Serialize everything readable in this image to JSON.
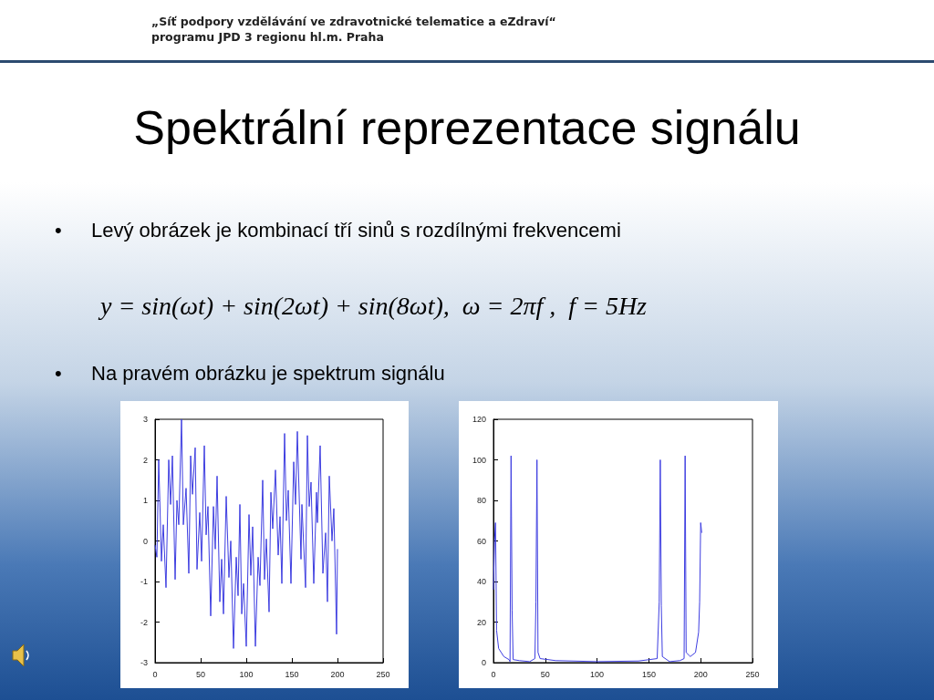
{
  "chart_data": [
    {
      "type": "line",
      "title": "Spektrální reprezentace signálu",
      "annotations": [
        "„Síť podpory vzdělávání ve zdravotnické telematice a eZdraví“ programu JPD 3 regionu hl.m. Praha",
        "• Levý obrázek je kombinací tří sinů s rozdílnými frekvencemi",
        "y = sin(ωt) + sin(2ωt) + sin(8ωt),  ω = 2πf ,  f = 5Hz",
        "• Na pravém obrázku je spektrum signálu"
      ],
      "x": [
        0,
        2,
        4,
        7,
        9,
        12,
        15,
        17,
        19,
        22,
        24,
        26,
        29,
        31,
        34,
        37,
        39,
        41,
        44,
        46,
        49,
        51,
        54,
        56,
        58,
        61,
        64,
        66,
        68,
        71,
        73,
        75,
        78,
        81,
        83,
        86,
        89,
        91,
        93,
        95,
        97,
        100,
        103,
        105,
        107,
        110,
        113,
        115,
        118,
        120,
        122,
        125,
        127,
        129,
        132,
        135,
        137,
        139,
        142,
        144,
        146,
        149,
        152,
        154,
        156,
        160,
        161,
        165,
        167,
        169,
        171,
        174,
        177,
        178,
        181,
        184,
        187,
        189,
        191,
        194,
        196,
        199,
        200
      ],
      "values": [
        -0.1,
        -0.4,
        2.0,
        -0.5,
        0.4,
        -1.15,
        2.0,
        0.9,
        2.1,
        -0.95,
        1.0,
        0.4,
        3.0,
        0.4,
        1.3,
        -0.8,
        2.1,
        1.15,
        2.3,
        -0.7,
        0.7,
        -0.5,
        2.35,
        0.15,
        0.85,
        -1.85,
        0.85,
        -0.2,
        1.6,
        -1.5,
        -0.45,
        -1.8,
        1.1,
        -0.9,
        0.0,
        -2.65,
        -0.4,
        -1.35,
        0.9,
        -1.8,
        -1.05,
        -2.6,
        0.65,
        -0.85,
        0.35,
        -2.6,
        -0.4,
        -1.1,
        1.5,
        -0.95,
        0.05,
        -1.75,
        1.2,
        0.3,
        1.75,
        -0.35,
        0.6,
        -1.05,
        2.65,
        0.5,
        1.25,
        -1.05,
        1.95,
        0.9,
        2.7,
        -0.45,
        0.9,
        -1.15,
        2.6,
        0.85,
        1.45,
        -1.05,
        1.2,
        0.45,
        2.35,
        -0.8,
        0.2,
        -1.5,
        1.6,
        0.0,
        0.8,
        -2.3,
        -0.2
      ],
      "color": "#3d3de0",
      "xlim": [
        0,
        250
      ],
      "xticks": [
        0,
        50,
        100,
        150,
        200,
        250
      ],
      "ylim": [
        -3,
        3
      ],
      "yticks": [
        -3,
        -2,
        -1,
        0,
        1,
        2,
        3
      ],
      "grid": false
    },
    {
      "type": "line",
      "x": [
        0,
        1,
        2,
        3,
        5,
        10,
        15,
        16,
        17,
        18,
        19,
        25,
        35,
        40,
        41,
        42,
        43,
        45,
        60,
        100,
        140,
        158,
        160,
        161,
        162,
        163,
        170,
        180,
        184,
        185,
        186,
        190,
        195,
        198,
        199,
        200,
        201
      ],
      "values": [
        36,
        60,
        69,
        16,
        7,
        3,
        1.5,
        0.5,
        102,
        26,
        1.5,
        1,
        0.5,
        2,
        30,
        100,
        5,
        2,
        1,
        0.5,
        0.8,
        2,
        30,
        100,
        28,
        3,
        0.5,
        1,
        2,
        102,
        5,
        3,
        5,
        15,
        30,
        69,
        64
      ],
      "color": "#3d3de0",
      "xlim": [
        0,
        250
      ],
      "xticks": [
        0,
        50,
        100,
        150,
        200,
        250
      ],
      "ylim": [
        0,
        120
      ],
      "yticks": [
        0,
        20,
        40,
        60,
        80,
        100,
        120
      ],
      "grid": false
    }
  ]
}
